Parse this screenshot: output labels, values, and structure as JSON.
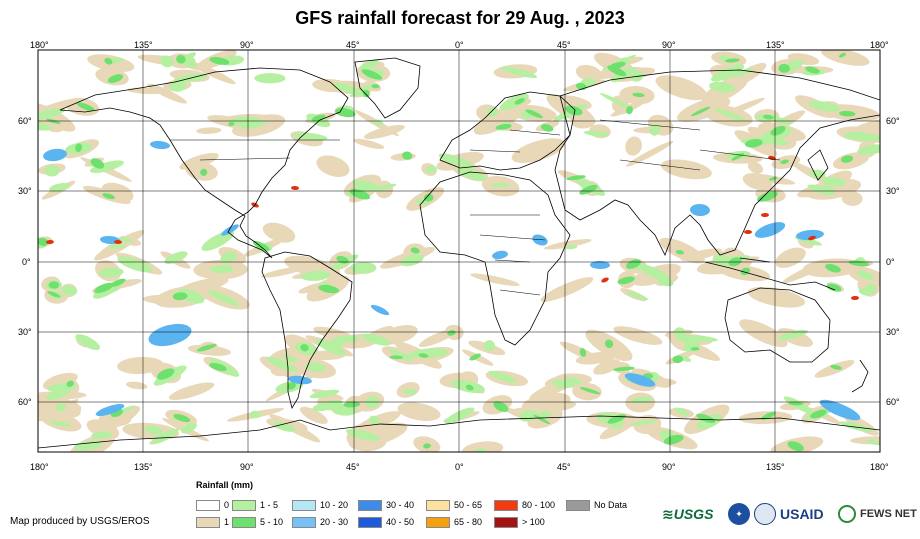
{
  "title": "GFS rainfall forecast for 29 Aug. , 2023",
  "map": {
    "lon_labels": [
      "180°",
      "135°",
      "90°",
      "45°",
      "0°",
      "45°",
      "90°",
      "135°",
      "180°"
    ],
    "lat_labels": [
      "60°",
      "30°",
      "0°",
      "30°",
      "60°"
    ],
    "colors": {
      "ocean": "#ffffff",
      "land": "#ffffff",
      "trace": "#e8d8b8",
      "light": "#b4f0a0",
      "medium": "#6ee06e",
      "blue": "#5ab4f0",
      "heavy": "#e03010"
    }
  },
  "legend": {
    "title": "Rainfall (mm)",
    "items": [
      {
        "label": "0",
        "color": "#ffffff"
      },
      {
        "label": "1",
        "color": "#e8d8b8"
      },
      {
        "label": "1 - 5",
        "color": "#b4f0a0"
      },
      {
        "label": "5 - 10",
        "color": "#6ee06e"
      },
      {
        "label": "10 - 20",
        "color": "#b4e8f4"
      },
      {
        "label": "20 - 30",
        "color": "#78c0f8"
      },
      {
        "label": "30 - 40",
        "color": "#3c8ce8"
      },
      {
        "label": "40 - 50",
        "color": "#1e5adc"
      },
      {
        "label": "50 - 65",
        "color": "#fde0a0"
      },
      {
        "label": "65 - 80",
        "color": "#f5a010"
      },
      {
        "label": "80 - 100",
        "color": "#f03c10"
      },
      {
        "label": "> 100",
        "color": "#a01414"
      },
      {
        "label": "No Data",
        "color": "#9a9a9a"
      }
    ]
  },
  "credit": "Map produced by USGS/EROS",
  "logos": [
    "USGS",
    "USAID",
    "FEWS NET"
  ]
}
